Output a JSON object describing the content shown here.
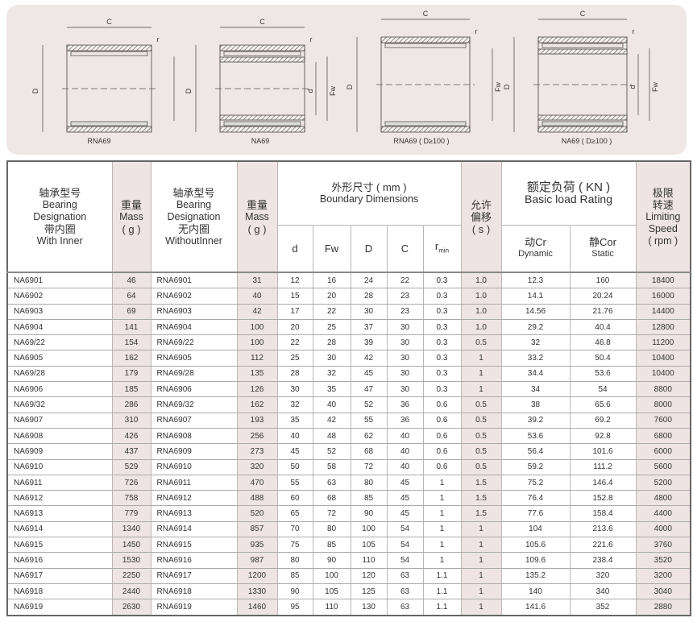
{
  "diagrams": [
    {
      "caption": "RNA69",
      "labels": {
        "C": "C",
        "D": "D",
        "Fw": "Fw",
        "r": "r"
      }
    },
    {
      "caption": "NA69",
      "labels": {
        "C": "C",
        "D": "D",
        "Fw": "Fw",
        "d": "d",
        "r": "r"
      }
    },
    {
      "caption": "RNA69 ( D≥100 )",
      "labels": {
        "C": "C",
        "D": "D",
        "Fw": "Fw",
        "r": "r"
      }
    },
    {
      "caption": "NA69 ( D≥100 )",
      "labels": {
        "C": "C",
        "D": "D",
        "Fw": "Fw",
        "d": "d",
        "r": "r"
      }
    }
  ],
  "header": {
    "col1": {
      "cn": "轴承型号",
      "en1": "Bearing",
      "en2": "Designation",
      "cn2": "带内圈",
      "en3": "With Inner"
    },
    "mass1": {
      "cn": "重量",
      "en": "Mass",
      "unit": "( g )"
    },
    "col3": {
      "cn": "轴承型号",
      "en1": "Bearing",
      "en2": "Designation",
      "cn2": "无内圈",
      "en3": "WithoutInner"
    },
    "mass2": {
      "cn": "重量",
      "en": "Mass",
      "unit": "( g )"
    },
    "dims": {
      "cn": "外形尺寸 ( mm )",
      "en": "Boundary Dimensions",
      "d": "d",
      "fw": "Fw",
      "D": "D",
      "C": "C",
      "r": "r",
      "rsub": "min"
    },
    "offset": {
      "cn": "允许偏移",
      "unit": "( s )"
    },
    "load": {
      "cn": "额定负荷 ( KN )",
      "en": "Basic load Rating",
      "cr": "动Cr",
      "cr_en": "Dynamic",
      "cor": "静Cor",
      "cor_en": "Static"
    },
    "speed": {
      "cn": "极限转速",
      "en1": "Limiting",
      "en2": "Speed",
      "unit": "( rpm )"
    }
  },
  "rows": [
    [
      "NA6901",
      "46",
      "RNA6901",
      "31",
      "12",
      "16",
      "24",
      "22",
      "0.3",
      "1.0",
      "12.3",
      "160",
      "18400"
    ],
    [
      "NA6902",
      "64",
      "RNA6902",
      "40",
      "15",
      "20",
      "28",
      "23",
      "0.3",
      "1.0",
      "14.1",
      "20.24",
      "16000"
    ],
    [
      "NA6903",
      "69",
      "RNA6903",
      "42",
      "17",
      "22",
      "30",
      "23",
      "0.3",
      "1.0",
      "14.56",
      "21.76",
      "14400"
    ],
    [
      "NA6904",
      "141",
      "RNA6904",
      "100",
      "20",
      "25",
      "37",
      "30",
      "0.3",
      "1.0",
      "29.2",
      "40.4",
      "12800"
    ],
    [
      "NA69/22",
      "154",
      "RNA69/22",
      "100",
      "22",
      "28",
      "39",
      "30",
      "0.3",
      "0.5",
      "32",
      "46.8",
      "11200"
    ],
    [
      "NA6905",
      "162",
      "RNA6905",
      "112",
      "25",
      "30",
      "42",
      "30",
      "0.3",
      "1",
      "33.2",
      "50.4",
      "10400"
    ],
    [
      "NA69/28",
      "179",
      "RNA69/28",
      "135",
      "28",
      "32",
      "45",
      "30",
      "0.3",
      "1",
      "34.4",
      "53.6",
      "10400"
    ],
    [
      "NA6906",
      "185",
      "RNA6906",
      "126",
      "30",
      "35",
      "47",
      "30",
      "0.3",
      "1",
      "34",
      "54",
      "8800"
    ],
    [
      "NA69/32",
      "286",
      "RNA69/32",
      "162",
      "32",
      "40",
      "52",
      "36",
      "0.6",
      "0.5",
      "38",
      "65.6",
      "8000"
    ],
    [
      "NA6907",
      "310",
      "RNA6907",
      "193",
      "35",
      "42",
      "55",
      "36",
      "0.6",
      "0.5",
      "39.2",
      "69.2",
      "7600"
    ],
    [
      "NA6908",
      "426",
      "RNA6908",
      "256",
      "40",
      "48",
      "62",
      "40",
      "0.6",
      "0.5",
      "53.6",
      "92.8",
      "6800"
    ],
    [
      "NA6909",
      "437",
      "RNA6909",
      "273",
      "45",
      "52",
      "68",
      "40",
      "0.6",
      "0.5",
      "56.4",
      "101.6",
      "6000"
    ],
    [
      "NA6910",
      "529",
      "RNA6910",
      "320",
      "50",
      "58",
      "72",
      "40",
      "0.6",
      "0.5",
      "59.2",
      "111.2",
      "5600"
    ],
    [
      "NA6911",
      "726",
      "RNA6911",
      "470",
      "55",
      "63",
      "80",
      "45",
      "1",
      "1.5",
      "75.2",
      "146.4",
      "5200"
    ],
    [
      "NA6912",
      "758",
      "RNA6912",
      "488",
      "60",
      "68",
      "85",
      "45",
      "1",
      "1.5",
      "76.4",
      "152.8",
      "4800"
    ],
    [
      "NA6913",
      "779",
      "RNA6913",
      "520",
      "65",
      "72",
      "90",
      "45",
      "1",
      "1.5",
      "77.6",
      "158.4",
      "4400"
    ],
    [
      "NA6914",
      "1340",
      "RNA6914",
      "857",
      "70",
      "80",
      "100",
      "54",
      "1",
      "1",
      "104",
      "213.6",
      "4000"
    ],
    [
      "NA6915",
      "1450",
      "RNA6915",
      "935",
      "75",
      "85",
      "105",
      "54",
      "1",
      "1",
      "105.6",
      "221.6",
      "3760"
    ],
    [
      "NA6916",
      "1530",
      "RNA6916",
      "987",
      "80",
      "90",
      "110",
      "54",
      "1",
      "1",
      "109.6",
      "238.4",
      "3520"
    ],
    [
      "NA6917",
      "2250",
      "RNA6917",
      "1200",
      "85",
      "100",
      "120",
      "63",
      "1.1",
      "1",
      "135.2",
      "320",
      "3200"
    ],
    [
      "NA6918",
      "2440",
      "RNA6918",
      "1330",
      "90",
      "105",
      "125",
      "63",
      "1.1",
      "1",
      "140",
      "340",
      "3040"
    ],
    [
      "NA6919",
      "2630",
      "RNA6919",
      "1460",
      "95",
      "110",
      "130",
      "63",
      "1.1",
      "1",
      "141.6",
      "352",
      "2880"
    ]
  ]
}
